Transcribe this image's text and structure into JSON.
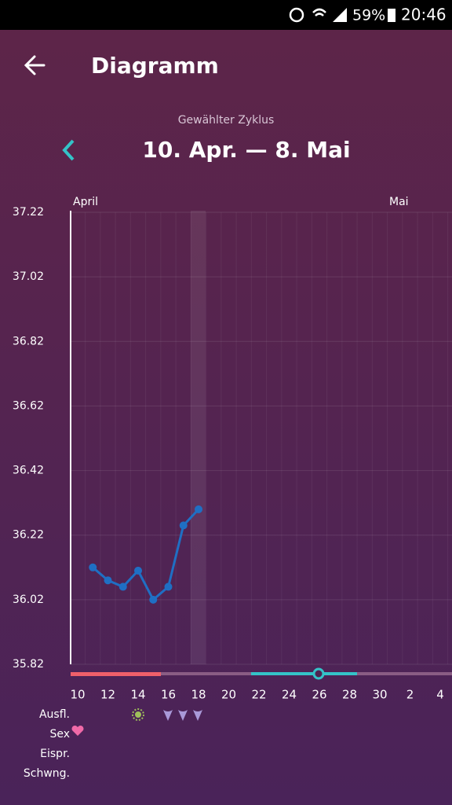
{
  "status_bar": {
    "battery": "59%",
    "time": "20:46"
  },
  "header": {
    "title": "Diagramm"
  },
  "cycle": {
    "caption": "Gewählter Zyklus",
    "range": "10. Apr. — 8. Mai"
  },
  "chart_data": {
    "type": "line",
    "months": [
      "April",
      "Mai"
    ],
    "categories": [
      "10",
      null,
      "12",
      null,
      "14",
      null,
      "16",
      null,
      "18",
      null,
      "20",
      null,
      "22",
      null,
      "24",
      null,
      "26",
      null,
      "28",
      null,
      "30",
      null,
      "2",
      null,
      "4"
    ],
    "values": [
      null,
      36.12,
      36.08,
      36.06,
      36.11,
      36.02,
      36.06,
      36.25,
      36.3,
      null,
      null,
      null,
      null,
      null,
      null,
      null,
      null,
      null,
      null,
      null,
      null,
      null,
      null,
      null,
      null
    ],
    "color": "#1f6fc4",
    "ylim": [
      35.82,
      37.22
    ],
    "yticks": [
      35.82,
      36.02,
      36.22,
      36.42,
      36.62,
      36.82,
      37.02,
      37.22
    ],
    "grid": true,
    "rows": [
      "Ausfl.",
      "Sex",
      "Eispr.",
      "Schwng."
    ]
  }
}
